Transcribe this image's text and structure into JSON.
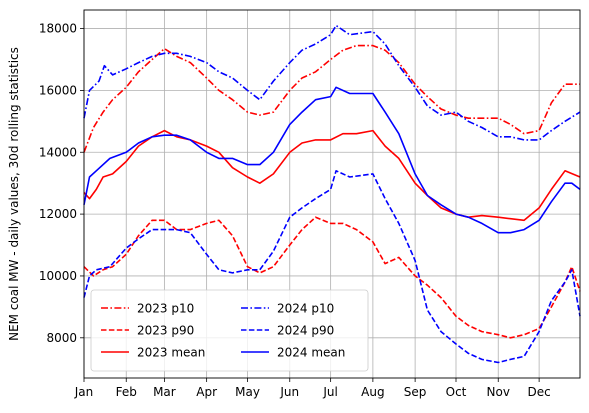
{
  "chart_data": {
    "type": "line",
    "title": "",
    "xlabel": "",
    "ylabel": "NEM coal MW - daily values, 30d rolling statistics",
    "xlim": [
      "Jan 1",
      "Dec 31"
    ],
    "ylim": [
      6700,
      18600
    ],
    "grid": true,
    "legend": {
      "placement": "lower-left",
      "columns": 2
    },
    "x_ticks": [
      "Jan",
      "Feb",
      "Mar",
      "Apr",
      "May",
      "Jun",
      "Jul",
      "Aug",
      "Sep",
      "Oct",
      "Nov",
      "Dec"
    ],
    "y_ticks": [
      "8000",
      "10000",
      "12000",
      "14000",
      "16000",
      "18000"
    ],
    "series": [
      {
        "name": "2023 p10",
        "color": "#ff0000",
        "dash": "dashdot",
        "points": [
          [
            "Jan 1",
            14000
          ],
          [
            "Jan 8",
            14800
          ],
          [
            "Jan 15",
            15300
          ],
          [
            "Jan 22",
            15700
          ],
          [
            "Feb 1",
            16100
          ],
          [
            "Feb 10",
            16600
          ],
          [
            "Feb 20",
            17000
          ],
          [
            "Mar 1",
            17350
          ],
          [
            "Mar 10",
            17100
          ],
          [
            "Mar 20",
            16900
          ],
          [
            "Apr 1",
            16400
          ],
          [
            "Apr 10",
            16000
          ],
          [
            "Apr 20",
            15700
          ],
          [
            "May 1",
            15300
          ],
          [
            "May 10",
            15200
          ],
          [
            "May 20",
            15300
          ],
          [
            "Jun 1",
            16000
          ],
          [
            "Jun 10",
            16400
          ],
          [
            "Jun 20",
            16600
          ],
          [
            "Jul 1",
            17000
          ],
          [
            "Jul 10",
            17300
          ],
          [
            "Jul 20",
            17450
          ],
          [
            "Aug 1",
            17450
          ],
          [
            "Aug 10",
            17300
          ],
          [
            "Aug 20",
            16900
          ],
          [
            "Sep 1",
            16200
          ],
          [
            "Sep 10",
            15800
          ],
          [
            "Sep 20",
            15400
          ],
          [
            "Oct 1",
            15200
          ],
          [
            "Oct 10",
            15100
          ],
          [
            "Oct 20",
            15100
          ],
          [
            "Nov 1",
            15100
          ],
          [
            "Nov 10",
            14900
          ],
          [
            "Nov 20",
            14600
          ],
          [
            "Dec 1",
            14700
          ],
          [
            "Dec 10",
            15600
          ],
          [
            "Dec 20",
            16200
          ],
          [
            "Dec 31",
            16200
          ]
        ]
      },
      {
        "name": "2023 p90",
        "color": "#ff0000",
        "dash": "dashed",
        "points": [
          [
            "Jan 1",
            10300
          ],
          [
            "Jan 8",
            10000
          ],
          [
            "Jan 15",
            10200
          ],
          [
            "Jan 22",
            10300
          ],
          [
            "Feb 1",
            10700
          ],
          [
            "Feb 10",
            11300
          ],
          [
            "Feb 20",
            11800
          ],
          [
            "Mar 1",
            11800
          ],
          [
            "Mar 10",
            11500
          ],
          [
            "Mar 20",
            11500
          ],
          [
            "Apr 1",
            11700
          ],
          [
            "Apr 10",
            11800
          ],
          [
            "Apr 20",
            11300
          ],
          [
            "May 1",
            10300
          ],
          [
            "May 10",
            10100
          ],
          [
            "May 20",
            10300
          ],
          [
            "Jun 1",
            11000
          ],
          [
            "Jun 10",
            11500
          ],
          [
            "Jun 20",
            11900
          ],
          [
            "Jul 1",
            11700
          ],
          [
            "Jul 10",
            11700
          ],
          [
            "Jul 20",
            11500
          ],
          [
            "Aug 1",
            11100
          ],
          [
            "Aug 10",
            10400
          ],
          [
            "Aug 20",
            10600
          ],
          [
            "Sep 1",
            10000
          ],
          [
            "Sep 10",
            9700
          ],
          [
            "Sep 20",
            9300
          ],
          [
            "Oct 1",
            8700
          ],
          [
            "Oct 10",
            8400
          ],
          [
            "Oct 20",
            8200
          ],
          [
            "Nov 1",
            8100
          ],
          [
            "Nov 10",
            8000
          ],
          [
            "Nov 20",
            8100
          ],
          [
            "Dec 1",
            8300
          ],
          [
            "Dec 10",
            9000
          ],
          [
            "Dec 20",
            9800
          ],
          [
            "Dec 25",
            10300
          ],
          [
            "Dec 31",
            9500
          ]
        ]
      },
      {
        "name": "2023 mean",
        "color": "#ff0000",
        "dash": "solid",
        "points": [
          [
            "Jan 1",
            12700
          ],
          [
            "Jan 5",
            12500
          ],
          [
            "Jan 10",
            12800
          ],
          [
            "Jan 15",
            13200
          ],
          [
            "Jan 22",
            13300
          ],
          [
            "Feb 1",
            13700
          ],
          [
            "Feb 10",
            14200
          ],
          [
            "Feb 20",
            14500
          ],
          [
            "Mar 1",
            14700
          ],
          [
            "Mar 10",
            14500
          ],
          [
            "Mar 20",
            14400
          ],
          [
            "Apr 1",
            14200
          ],
          [
            "Apr 10",
            14000
          ],
          [
            "Apr 20",
            13500
          ],
          [
            "May 1",
            13200
          ],
          [
            "May 10",
            13000
          ],
          [
            "May 20",
            13300
          ],
          [
            "Jun 1",
            14000
          ],
          [
            "Jun 10",
            14300
          ],
          [
            "Jun 20",
            14400
          ],
          [
            "Jul 1",
            14400
          ],
          [
            "Jul 10",
            14600
          ],
          [
            "Jul 20",
            14600
          ],
          [
            "Aug 1",
            14700
          ],
          [
            "Aug 10",
            14200
          ],
          [
            "Aug 20",
            13800
          ],
          [
            "Sep 1",
            13000
          ],
          [
            "Sep 10",
            12600
          ],
          [
            "Sep 20",
            12200
          ],
          [
            "Oct 1",
            12000
          ],
          [
            "Oct 10",
            11900
          ],
          [
            "Oct 20",
            11950
          ],
          [
            "Nov 1",
            11900
          ],
          [
            "Nov 10",
            11850
          ],
          [
            "Nov 20",
            11800
          ],
          [
            "Dec 1",
            12200
          ],
          [
            "Dec 10",
            12800
          ],
          [
            "Dec 20",
            13400
          ],
          [
            "Dec 31",
            13200
          ]
        ]
      },
      {
        "name": "2024 p10",
        "color": "#0000ff",
        "dash": "dashdot",
        "points": [
          [
            "Jan 1",
            15100
          ],
          [
            "Jan 5",
            16000
          ],
          [
            "Jan 12",
            16300
          ],
          [
            "Jan 16",
            16800
          ],
          [
            "Jan 22",
            16500
          ],
          [
            "Feb 1",
            16700
          ],
          [
            "Feb 10",
            16900
          ],
          [
            "Feb 20",
            17100
          ],
          [
            "Mar 1",
            17200
          ],
          [
            "Mar 10",
            17200
          ],
          [
            "Mar 20",
            17100
          ],
          [
            "Apr 1",
            16900
          ],
          [
            "Apr 10",
            16600
          ],
          [
            "Apr 20",
            16400
          ],
          [
            "May 1",
            16000
          ],
          [
            "May 10",
            15700
          ],
          [
            "May 20",
            16300
          ],
          [
            "Jun 1",
            16900
          ],
          [
            "Jun 10",
            17300
          ],
          [
            "Jun 20",
            17500
          ],
          [
            "Jul 1",
            17800
          ],
          [
            "Jul 5",
            18100
          ],
          [
            "Jul 15",
            17800
          ],
          [
            "Aug 1",
            17900
          ],
          [
            "Aug 10",
            17500
          ],
          [
            "Aug 20",
            16800
          ],
          [
            "Sep 1",
            16100
          ],
          [
            "Sep 10",
            15500
          ],
          [
            "Sep 20",
            15200
          ],
          [
            "Oct 1",
            15300
          ],
          [
            "Oct 10",
            15000
          ],
          [
            "Oct 20",
            14800
          ],
          [
            "Nov 1",
            14500
          ],
          [
            "Nov 10",
            14500
          ],
          [
            "Nov 20",
            14400
          ],
          [
            "Dec 1",
            14400
          ],
          [
            "Dec 10",
            14700
          ],
          [
            "Dec 20",
            15000
          ],
          [
            "Dec 31",
            15300
          ]
        ]
      },
      {
        "name": "2024 p90",
        "color": "#0000ff",
        "dash": "dashed",
        "points": [
          [
            "Jan 1",
            9300
          ],
          [
            "Jan 5",
            10000
          ],
          [
            "Jan 10",
            10200
          ],
          [
            "Jan 20",
            10300
          ],
          [
            "Feb 1",
            10900
          ],
          [
            "Feb 10",
            11200
          ],
          [
            "Feb 20",
            11500
          ],
          [
            "Mar 1",
            11500
          ],
          [
            "Mar 10",
            11500
          ],
          [
            "Mar 20",
            11400
          ],
          [
            "Apr 1",
            10700
          ],
          [
            "Apr 10",
            10200
          ],
          [
            "Apr 20",
            10100
          ],
          [
            "May 1",
            10200
          ],
          [
            "May 10",
            10200
          ],
          [
            "May 20",
            10800
          ],
          [
            "Jun 1",
            11900
          ],
          [
            "Jun 10",
            12200
          ],
          [
            "Jun 20",
            12500
          ],
          [
            "Jul 1",
            12800
          ],
          [
            "Jul 5",
            13400
          ],
          [
            "Jul 15",
            13200
          ],
          [
            "Aug 1",
            13300
          ],
          [
            "Aug 10",
            12500
          ],
          [
            "Aug 20",
            11700
          ],
          [
            "Sep 1",
            10500
          ],
          [
            "Sep 10",
            8900
          ],
          [
            "Sep 20",
            8200
          ],
          [
            "Oct 1",
            7800
          ],
          [
            "Oct 10",
            7500
          ],
          [
            "Oct 20",
            7300
          ],
          [
            "Nov 1",
            7200
          ],
          [
            "Nov 10",
            7300
          ],
          [
            "Nov 20",
            7400
          ],
          [
            "Dec 1",
            8200
          ],
          [
            "Dec 10",
            9200
          ],
          [
            "Dec 20",
            9800
          ],
          [
            "Dec 25",
            10200
          ],
          [
            "Dec 31",
            8700
          ]
        ]
      },
      {
        "name": "2024 mean",
        "color": "#0000ff",
        "dash": "solid",
        "points": [
          [
            "Jan 1",
            12300
          ],
          [
            "Jan 5",
            13200
          ],
          [
            "Jan 10",
            13400
          ],
          [
            "Jan 20",
            13800
          ],
          [
            "Feb 1",
            14000
          ],
          [
            "Feb 10",
            14300
          ],
          [
            "Feb 20",
            14500
          ],
          [
            "Mar 1",
            14550
          ],
          [
            "Mar 10",
            14550
          ],
          [
            "Mar 20",
            14400
          ],
          [
            "Apr 1",
            14000
          ],
          [
            "Apr 10",
            13800
          ],
          [
            "Apr 20",
            13800
          ],
          [
            "May 1",
            13600
          ],
          [
            "May 10",
            13600
          ],
          [
            "May 20",
            14000
          ],
          [
            "Jun 1",
            14900
          ],
          [
            "Jun 10",
            15300
          ],
          [
            "Jun 20",
            15700
          ],
          [
            "Jul 1",
            15800
          ],
          [
            "Jul 5",
            16100
          ],
          [
            "Jul 15",
            15900
          ],
          [
            "Aug 1",
            15900
          ],
          [
            "Aug 10",
            15300
          ],
          [
            "Aug 20",
            14600
          ],
          [
            "Sep 1",
            13300
          ],
          [
            "Sep 10",
            12600
          ],
          [
            "Sep 20",
            12300
          ],
          [
            "Oct 1",
            12000
          ],
          [
            "Oct 10",
            11900
          ],
          [
            "Oct 20",
            11700
          ],
          [
            "Nov 1",
            11400
          ],
          [
            "Nov 10",
            11400
          ],
          [
            "Nov 20",
            11500
          ],
          [
            "Dec 1",
            11800
          ],
          [
            "Dec 10",
            12400
          ],
          [
            "Dec 20",
            13000
          ],
          [
            "Dec 25",
            13000
          ],
          [
            "Dec 31",
            12800
          ]
        ]
      }
    ]
  }
}
